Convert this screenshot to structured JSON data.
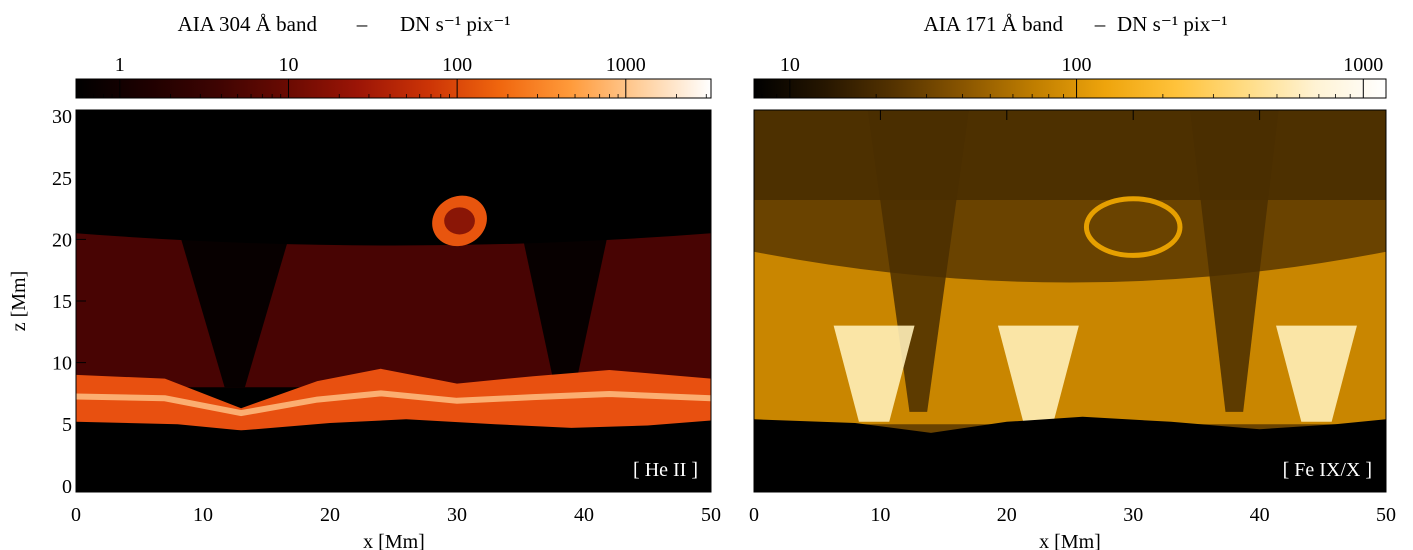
{
  "chart_data": [
    {
      "type": "heatmap",
      "panel": "left",
      "title": "AIA 304 Å band  –  DN s⁻¹ pix⁻¹",
      "title_main": "AIA 304 Å band",
      "title_dash": "–",
      "title_unit": "DN s⁻¹ pix⁻¹",
      "colorbar": {
        "scale": "log",
        "range": [
          0.55,
          3200
        ],
        "tick_values": [
          1,
          10,
          100,
          1000
        ],
        "tick_labels": [
          "1",
          "10",
          "100",
          "1000"
        ],
        "colormap": [
          "#000000",
          "#1e0000",
          "#3e0402",
          "#6a0a02",
          "#9c1506",
          "#cc3406",
          "#f0660e",
          "#ff9a3a",
          "#ffcf9c",
          "#ffffff"
        ]
      },
      "xlabel": "x [Mm]",
      "ylabel": "z [Mm]",
      "xlim": [
        0,
        50
      ],
      "ylim": [
        -0.5,
        30.5
      ],
      "x_ticks": [
        0,
        10,
        20,
        30,
        40,
        50
      ],
      "x_tick_labels": [
        "0",
        "10",
        "20",
        "30",
        "40",
        "50"
      ],
      "y_ticks": [
        0,
        5,
        10,
        15,
        20,
        25,
        30
      ],
      "y_tick_labels": [
        "0",
        "5",
        "10",
        "15",
        "20",
        "25",
        "30"
      ],
      "annotation": "[ He II ]",
      "features": {
        "surface_height": [
          [
            0,
            5.2
          ],
          [
            8,
            5.0
          ],
          [
            13,
            4.5
          ],
          [
            20,
            5.1
          ],
          [
            26,
            5.4
          ],
          [
            33,
            5.0
          ],
          [
            39,
            4.7
          ],
          [
            45,
            4.9
          ],
          [
            50,
            5.3
          ]
        ],
        "bright_layer_top": [
          [
            0,
            9.0
          ],
          [
            7,
            8.7
          ],
          [
            13,
            6.3
          ],
          [
            19,
            8.5
          ],
          [
            24,
            9.5
          ],
          [
            30,
            8.3
          ],
          [
            36,
            8.9
          ],
          [
            42,
            9.4
          ],
          [
            50,
            8.7
          ]
        ],
        "dark_lanes_x": [
          12.5,
          38.5
        ],
        "blob": {
          "center": [
            30.2,
            21.5
          ],
          "semi_axes": [
            2.2,
            2.0
          ]
        }
      }
    },
    {
      "type": "heatmap",
      "panel": "right",
      "title": "AIA 171 Å band  –  DN s⁻¹ pix⁻¹",
      "title_main": "AIA 171 Å band",
      "title_dash": "–",
      "title_unit": "DN s⁻¹ pix⁻¹",
      "colorbar": {
        "scale": "log",
        "range": [
          7.5,
          1200
        ],
        "tick_values": [
          10,
          100,
          1000
        ],
        "tick_labels": [
          "10",
          "100",
          "1000"
        ],
        "colormap": [
          "#000000",
          "#261600",
          "#553300",
          "#8a5600",
          "#c07e00",
          "#eea40c",
          "#ffc23a",
          "#ffdc84",
          "#fff3d4",
          "#ffffff"
        ]
      },
      "xlabel": "x [Mm]",
      "xlim": [
        0,
        50
      ],
      "ylim": [
        -0.5,
        30.5
      ],
      "x_ticks": [
        0,
        10,
        20,
        30,
        40,
        50
      ],
      "x_tick_labels": [
        "0",
        "10",
        "20",
        "30",
        "40",
        "50"
      ],
      "annotation": "[ Fe IX/X ]",
      "features": {
        "surface_height": [
          [
            0,
            5.4
          ],
          [
            8,
            5.1
          ],
          [
            14,
            4.3
          ],
          [
            20,
            5.2
          ],
          [
            26,
            5.6
          ],
          [
            33,
            5.2
          ],
          [
            40,
            4.6
          ],
          [
            46,
            5.0
          ],
          [
            50,
            5.4
          ]
        ],
        "bright_foot_x": [
          9.5,
          22.5,
          44.5
        ],
        "dark_lanes_x": [
          13.0,
          38.0
        ],
        "loop_ring": {
          "center": [
            30.0,
            21.0
          ],
          "semi_axes": [
            3.7,
            2.3
          ]
        }
      }
    }
  ]
}
